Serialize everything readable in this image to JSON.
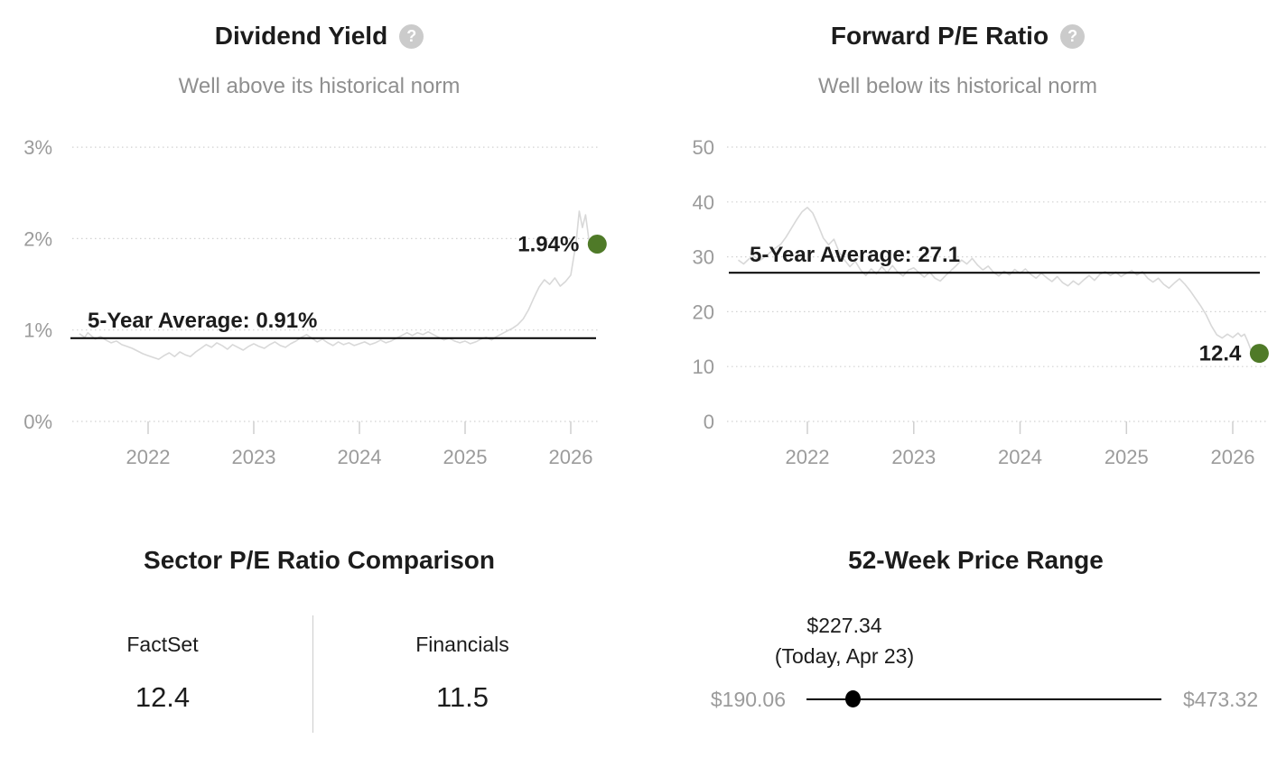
{
  "ui": {
    "help_glyph": "?"
  },
  "colors": {
    "text": "#1c1c1c",
    "muted": "#8f8f8f",
    "axis": "#9b9b9b",
    "series_line": "#d8d8d8",
    "grid": "#d2d2d2",
    "tick": "#cfcfcf",
    "average_line": "#000000",
    "marker_green": "#4f7a28",
    "divider": "#cccccc",
    "slider": "#000000",
    "help_icon_bg": "#cbcbcb",
    "help_icon_glyph": "#ffffff"
  },
  "chart_data": [
    {
      "type": "line",
      "title": "Dividend Yield",
      "subtitle": "Well above its historical norm",
      "xlabel": "",
      "ylabel": "",
      "xlim": [
        2021.32,
        2026.33
      ],
      "ylim": [
        0,
        3.3
      ],
      "grid": "horizontal-dotted",
      "legend": "none",
      "x_ticks": [
        2022,
        2023,
        2024,
        2025,
        2026
      ],
      "y_ticks": [
        {
          "value": 3,
          "label": "3%"
        },
        {
          "value": 2,
          "label": "2%"
        },
        {
          "value": 1,
          "label": "1%"
        },
        {
          "value": 0,
          "label": "0%"
        }
      ],
      "average": {
        "value": 0.91,
        "label": "5-Year Average: 0.91%"
      },
      "current": {
        "value": 1.94,
        "label": "1.94%"
      },
      "series": [
        {
          "name": "Dividend Yield (%)",
          "points": [
            [
              2021.35,
              0.96
            ],
            [
              2021.4,
              0.92
            ],
            [
              2021.43,
              0.97
            ],
            [
              2021.46,
              0.94
            ],
            [
              2021.5,
              0.9
            ],
            [
              2021.55,
              0.93
            ],
            [
              2021.6,
              0.89
            ],
            [
              2021.65,
              0.86
            ],
            [
              2021.7,
              0.88
            ],
            [
              2021.75,
              0.84
            ],
            [
              2021.8,
              0.82
            ],
            [
              2021.85,
              0.8
            ],
            [
              2021.9,
              0.77
            ],
            [
              2021.95,
              0.74
            ],
            [
              2022,
              0.72
            ],
            [
              2022.05,
              0.7
            ],
            [
              2022.1,
              0.68
            ],
            [
              2022.15,
              0.72
            ],
            [
              2022.2,
              0.75
            ],
            [
              2022.25,
              0.71
            ],
            [
              2022.3,
              0.76
            ],
            [
              2022.35,
              0.73
            ],
            [
              2022.4,
              0.71
            ],
            [
              2022.45,
              0.76
            ],
            [
              2022.5,
              0.8
            ],
            [
              2022.55,
              0.84
            ],
            [
              2022.6,
              0.81
            ],
            [
              2022.65,
              0.86
            ],
            [
              2022.7,
              0.83
            ],
            [
              2022.75,
              0.79
            ],
            [
              2022.8,
              0.84
            ],
            [
              2022.85,
              0.81
            ],
            [
              2022.9,
              0.78
            ],
            [
              2022.95,
              0.82
            ],
            [
              2023,
              0.85
            ],
            [
              2023.05,
              0.82
            ],
            [
              2023.1,
              0.8
            ],
            [
              2023.15,
              0.84
            ],
            [
              2023.2,
              0.87
            ],
            [
              2023.25,
              0.83
            ],
            [
              2023.3,
              0.81
            ],
            [
              2023.35,
              0.85
            ],
            [
              2023.4,
              0.88
            ],
            [
              2023.45,
              0.92
            ],
            [
              2023.5,
              0.95
            ],
            [
              2023.55,
              0.91
            ],
            [
              2023.6,
              0.87
            ],
            [
              2023.65,
              0.9
            ],
            [
              2023.7,
              0.86
            ],
            [
              2023.75,
              0.83
            ],
            [
              2023.8,
              0.87
            ],
            [
              2023.85,
              0.84
            ],
            [
              2023.9,
              0.86
            ],
            [
              2023.95,
              0.83
            ],
            [
              2024,
              0.85
            ],
            [
              2024.05,
              0.87
            ],
            [
              2024.1,
              0.84
            ],
            [
              2024.15,
              0.86
            ],
            [
              2024.2,
              0.89
            ],
            [
              2024.25,
              0.86
            ],
            [
              2024.3,
              0.88
            ],
            [
              2024.35,
              0.91
            ],
            [
              2024.4,
              0.94
            ],
            [
              2024.45,
              0.97
            ],
            [
              2024.5,
              0.94
            ],
            [
              2024.55,
              0.97
            ],
            [
              2024.6,
              0.95
            ],
            [
              2024.65,
              0.98
            ],
            [
              2024.7,
              0.95
            ],
            [
              2024.75,
              0.92
            ],
            [
              2024.8,
              0.89
            ],
            [
              2024.85,
              0.91
            ],
            [
              2024.9,
              0.88
            ],
            [
              2024.95,
              0.86
            ],
            [
              2025,
              0.88
            ],
            [
              2025.05,
              0.85
            ],
            [
              2025.1,
              0.87
            ],
            [
              2025.15,
              0.9
            ],
            [
              2025.2,
              0.92
            ],
            [
              2025.25,
              0.89
            ],
            [
              2025.3,
              0.93
            ],
            [
              2025.35,
              0.96
            ],
            [
              2025.4,
              0.99
            ],
            [
              2025.45,
              1.02
            ],
            [
              2025.5,
              1.06
            ],
            [
              2025.55,
              1.12
            ],
            [
              2025.6,
              1.22
            ],
            [
              2025.65,
              1.35
            ],
            [
              2025.7,
              1.47
            ],
            [
              2025.75,
              1.55
            ],
            [
              2025.8,
              1.5
            ],
            [
              2025.85,
              1.57
            ],
            [
              2025.9,
              1.48
            ],
            [
              2025.95,
              1.53
            ],
            [
              2026,
              1.6
            ],
            [
              2026.05,
              1.95
            ],
            [
              2026.08,
              2.3
            ],
            [
              2026.11,
              2.12
            ],
            [
              2026.14,
              2.26
            ],
            [
              2026.17,
              2
            ],
            [
              2026.2,
              1.88
            ],
            [
              2026.23,
              1.92
            ],
            [
              2026.25,
              1.94
            ]
          ]
        }
      ]
    },
    {
      "type": "line",
      "title": "Forward P/E Ratio",
      "subtitle": "Well below its historical norm",
      "xlabel": "",
      "ylabel": "",
      "xlim": [
        2021.32,
        2026.33
      ],
      "ylim": [
        0,
        55
      ],
      "grid": "horizontal-dotted",
      "legend": "none",
      "x_ticks": [
        2022,
        2023,
        2024,
        2025,
        2026
      ],
      "y_ticks": [
        {
          "value": 50,
          "label": "50"
        },
        {
          "value": 40,
          "label": "40"
        },
        {
          "value": 30,
          "label": "30"
        },
        {
          "value": 20,
          "label": "20"
        },
        {
          "value": 10,
          "label": "10"
        },
        {
          "value": 0,
          "label": "0"
        }
      ],
      "average": {
        "value": 27.1,
        "label": "5-Year Average: 27.1"
      },
      "current": {
        "value": 12.4,
        "label": "12.4"
      },
      "series": [
        {
          "name": "Forward P/E Ratio",
          "points": [
            [
              2021.35,
              29.4
            ],
            [
              2021.4,
              28.7
            ],
            [
              2021.45,
              29.6
            ],
            [
              2021.5,
              30.1
            ],
            [
              2021.55,
              29.3
            ],
            [
              2021.6,
              30
            ],
            [
              2021.65,
              30.8
            ],
            [
              2021.7,
              31.6
            ],
            [
              2021.75,
              32.3
            ],
            [
              2021.8,
              33.6
            ],
            [
              2021.85,
              35.2
            ],
            [
              2021.9,
              36.8
            ],
            [
              2021.95,
              38.2
            ],
            [
              2022,
              39
            ],
            [
              2022.05,
              38
            ],
            [
              2022.1,
              35.8
            ],
            [
              2022.15,
              33.4
            ],
            [
              2022.2,
              32.2
            ],
            [
              2022.25,
              33.2
            ],
            [
              2022.3,
              30.8
            ],
            [
              2022.35,
              29.4
            ],
            [
              2022.4,
              28.2
            ],
            [
              2022.45,
              29.2
            ],
            [
              2022.5,
              27.6
            ],
            [
              2022.55,
              26.6
            ],
            [
              2022.6,
              27.8
            ],
            [
              2022.65,
              26.9
            ],
            [
              2022.7,
              28.2
            ],
            [
              2022.75,
              27.1
            ],
            [
              2022.8,
              28.4
            ],
            [
              2022.85,
              27.2
            ],
            [
              2022.9,
              26.5
            ],
            [
              2022.95,
              27.6
            ],
            [
              2023,
              28
            ],
            [
              2023.05,
              27.1
            ],
            [
              2023.1,
              26.3
            ],
            [
              2023.15,
              27.2
            ],
            [
              2023.2,
              26.1
            ],
            [
              2023.25,
              25.6
            ],
            [
              2023.3,
              26.6
            ],
            [
              2023.35,
              27.5
            ],
            [
              2023.4,
              28.4
            ],
            [
              2023.45,
              29.4
            ],
            [
              2023.5,
              28.7
            ],
            [
              2023.55,
              29.7
            ],
            [
              2023.6,
              28.5
            ],
            [
              2023.65,
              27.6
            ],
            [
              2023.7,
              28.3
            ],
            [
              2023.75,
              27.2
            ],
            [
              2023.8,
              26.5
            ],
            [
              2023.85,
              27.4
            ],
            [
              2023.9,
              26.7
            ],
            [
              2023.95,
              27.7
            ],
            [
              2024,
              27
            ],
            [
              2024.05,
              27.8
            ],
            [
              2024.1,
              26.8
            ],
            [
              2024.15,
              26.1
            ],
            [
              2024.2,
              27
            ],
            [
              2024.25,
              26.2
            ],
            [
              2024.3,
              25.5
            ],
            [
              2024.35,
              26.4
            ],
            [
              2024.4,
              25.3
            ],
            [
              2024.45,
              24.7
            ],
            [
              2024.5,
              25.6
            ],
            [
              2024.55,
              24.9
            ],
            [
              2024.6,
              25.8
            ],
            [
              2024.65,
              26.6
            ],
            [
              2024.7,
              25.7
            ],
            [
              2024.75,
              26.8
            ],
            [
              2024.8,
              27.3
            ],
            [
              2024.85,
              26.6
            ],
            [
              2024.9,
              27.2
            ],
            [
              2024.95,
              26.4
            ],
            [
              2025,
              27
            ],
            [
              2025.05,
              27.5
            ],
            [
              2025.1,
              26.7
            ],
            [
              2025.15,
              27.3
            ],
            [
              2025.2,
              26.1
            ],
            [
              2025.25,
              25.4
            ],
            [
              2025.3,
              26.1
            ],
            [
              2025.35,
              25
            ],
            [
              2025.4,
              24.3
            ],
            [
              2025.45,
              25.2
            ],
            [
              2025.5,
              26
            ],
            [
              2025.55,
              25
            ],
            [
              2025.6,
              23.8
            ],
            [
              2025.65,
              22.4
            ],
            [
              2025.7,
              21
            ],
            [
              2025.75,
              19.4
            ],
            [
              2025.8,
              17.4
            ],
            [
              2025.85,
              15.8
            ],
            [
              2025.9,
              15.2
            ],
            [
              2025.95,
              15.9
            ],
            [
              2026,
              15.3
            ],
            [
              2026.05,
              16.1
            ],
            [
              2026.08,
              15.5
            ],
            [
              2026.11,
              15.9
            ],
            [
              2026.14,
              14.6
            ],
            [
              2026.17,
              13.1
            ],
            [
              2026.2,
              12.1
            ],
            [
              2026.23,
              13.2
            ],
            [
              2026.25,
              12.4
            ]
          ]
        }
      ]
    },
    {
      "type": "table",
      "title": "Sector P/E Ratio Comparison",
      "columns": [
        "FactSet",
        "Financials"
      ],
      "values": [
        "12.4",
        "11.5"
      ]
    },
    {
      "type": "range",
      "title": "52-Week Price Range",
      "min": 190.06,
      "max": 473.32,
      "current": 227.34,
      "min_label": "$190.06",
      "max_label": "$473.32",
      "current_label": "$227.34",
      "current_sublabel": "(Today, Apr 23)"
    }
  ]
}
